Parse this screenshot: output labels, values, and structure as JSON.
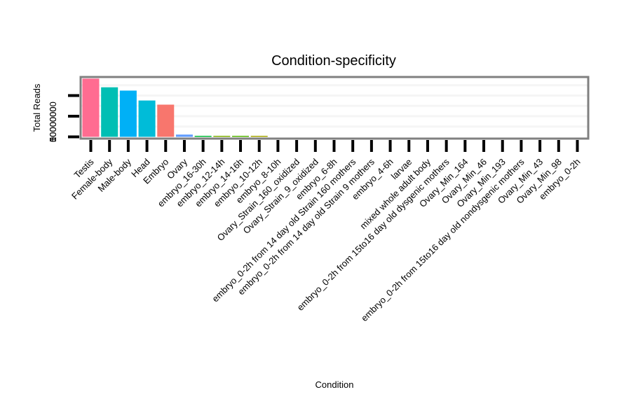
{
  "chart_data": {
    "type": "bar",
    "title": "Condition-specificity",
    "xlabel": "Condition",
    "ylabel": "Total Reads",
    "ylim": [
      0,
      14800000
    ],
    "yticks": [
      0,
      5000000,
      10000000
    ],
    "ytick_labels": [
      "0",
      "5000000",
      "10000000"
    ],
    "grid": true,
    "legend": "none",
    "categories": [
      "Testis",
      "Female-body",
      "Male-body",
      "Head",
      "Embryo",
      "Ovary",
      "embryo_16-30h",
      "embryo_12-14h",
      "embryo_14-16h",
      "embryo_10-12h",
      "embryo_8-10h",
      "Ovary_Strain_160_oxidized",
      "Ovary_Strain_9_oxidized",
      "embryo_6-8h",
      "embryo_0-2h from 14 day old Strain 160 mothers",
      "embryo_0-2h from 14 day old Strain 9 mothers",
      "embryo_4-6h",
      "larvae",
      "mixed whole adult body",
      "embryo_0-2h from 15to16 day old dysgenic mothers",
      "Ovary_Min_164",
      "Ovary_Min_46",
      "Ovary_Min_193",
      "embryo_0-2h from 15to16 day old nondysgenic mothers",
      "Ovary_Min_43",
      "Ovary_Min_98",
      "embryo_0-2h"
    ],
    "values": [
      14100000,
      12000000,
      11200000,
      8800000,
      7800000,
      550000,
      150000,
      100000,
      100000,
      100000,
      0,
      0,
      0,
      0,
      0,
      0,
      0,
      0,
      0,
      0,
      0,
      0,
      0,
      0,
      0,
      0,
      0
    ],
    "colors": [
      "#FF6C91",
      "#00BFB4",
      "#00B0F6",
      "#00BCD8",
      "#F8766D",
      "#619CFF",
      "#00BA38",
      "#7CAE00",
      "#53B400",
      "#A3A500",
      "#C49A00",
      "#D89000",
      "#E58700",
      "#EA8331",
      "#00C08B",
      "#00C1A3",
      "#00BFC4",
      "#00B4F0",
      "#35A2FF",
      "#9590FF",
      "#C77CFF",
      "#E76BF3",
      "#FA62DB",
      "#FF62BC",
      "#FF6A98",
      "#D39200",
      "#B79F00"
    ]
  }
}
